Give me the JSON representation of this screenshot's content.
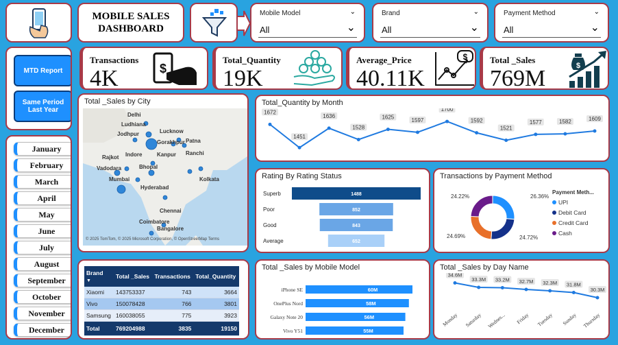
{
  "title": "MOBILE SALES DASHBOARD",
  "filters": [
    {
      "label": "Mobile Model",
      "value": "All"
    },
    {
      "label": "Brand",
      "value": "All"
    },
    {
      "label": "Payment Method",
      "value": "All"
    }
  ],
  "buttons": {
    "mtd": "MTD Report",
    "same_period": "Same Period Last Year"
  },
  "months": [
    "January",
    "February",
    "March",
    "April",
    "May",
    "June",
    "July",
    "August",
    "September",
    "October",
    "November",
    "December"
  ],
  "kpis": [
    {
      "label": "Transactions",
      "value": "4K"
    },
    {
      "label": "Total_Quantity",
      "value": "19K"
    },
    {
      "label": "Average_Price",
      "value": "40.11K"
    },
    {
      "label": "Total _Sales",
      "value": "769M"
    }
  ],
  "map": {
    "title": "Total _Sales by City",
    "cities": [
      "Delhi",
      "Ludhiana",
      "Jodhpur",
      "Lucknow",
      "Gorakhpur",
      "Patna",
      "Rajkot",
      "Indore",
      "Kanpur",
      "Ranchi",
      "Vadodara",
      "Bhopal",
      "Mumbai",
      "Kolkata",
      "Hyderabad",
      "Chennai",
      "Coimbatore",
      "Bangalore"
    ],
    "credit": "© 2025 TomTom, © 2025 Microsoft Corporation, © OpenStreetMap  Terms"
  },
  "qty_month": {
    "title": "Total_Quantity by Month",
    "chart_data": {
      "type": "line",
      "values": [
        1672,
        1451,
        1636,
        1528,
        1625,
        1597,
        1700,
        1592,
        1521,
        1577,
        1582,
        1609
      ]
    }
  },
  "rating": {
    "title": "Rating By Rating Status",
    "chart_data": {
      "type": "bar",
      "categories": [
        "Superb",
        "Poor",
        "Good",
        "Average"
      ],
      "values": [
        1488,
        852,
        843,
        652
      ]
    }
  },
  "payment": {
    "title": "Transactions by Payment Method",
    "legend_title": "Payment Meth...",
    "chart_data": {
      "type": "pie",
      "categories": [
        "UPI",
        "Debit Card",
        "Credit Card",
        "Cash"
      ],
      "values": [
        26.36,
        24.72,
        24.69,
        24.22
      ],
      "labels": [
        "26.36%",
        "24.72%",
        "24.69%",
        "24.22%"
      ],
      "colors": [
        "#1e90ff",
        "#14318a",
        "#e8702a",
        "#6a1b8a"
      ]
    }
  },
  "brand_table": {
    "headers": [
      "Brand",
      "Total _Sales",
      "Transactions",
      "Total_Quantity"
    ],
    "rows": [
      [
        "Xiaomi",
        "143753337",
        "743",
        "3664"
      ],
      [
        "Vivo",
        "150078428",
        "766",
        "3801"
      ],
      [
        "Samsung",
        "160038055",
        "775",
        "3923"
      ]
    ],
    "total": [
      "Total",
      "769204988",
      "3835",
      "19150"
    ]
  },
  "sales_model": {
    "title": "Total _Sales by Mobile Model",
    "chart_data": {
      "type": "bar",
      "categories": [
        "iPhone SE",
        "OnePlus Nord",
        "Galaxy Note 20",
        "Vivo Y51"
      ],
      "values": [
        60,
        58,
        56,
        55
      ],
      "labels": [
        "60M",
        "58M",
        "56M",
        "55M"
      ]
    }
  },
  "sales_day": {
    "title": "Total _Sales by Day Name",
    "chart_data": {
      "type": "line",
      "categories": [
        "Monday",
        "Saturday",
        "Wednes...",
        "Friday",
        "Tuesday",
        "Sunday",
        "Thursday"
      ],
      "values": [
        34.6,
        33.3,
        33.2,
        32.7,
        32.3,
        31.8,
        30.3
      ],
      "labels": [
        "34.6M",
        "33.3M",
        "33.2M",
        "32.7M",
        "32.3M",
        "31.8M",
        "30.3M"
      ]
    }
  }
}
